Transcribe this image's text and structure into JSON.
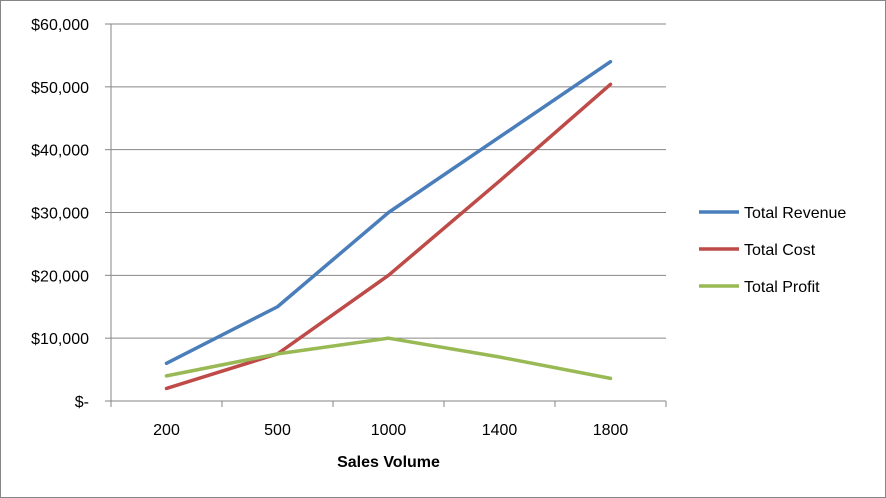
{
  "chart_data": {
    "type": "line",
    "categories": [
      "200",
      "500",
      "1000",
      "1400",
      "1800"
    ],
    "series": [
      {
        "name": "Total Revenue",
        "color": "#4A7EBB",
        "values": [
          6000,
          15000,
          30000,
          42000,
          54000
        ]
      },
      {
        "name": "Total Cost",
        "color": "#BE4B48",
        "values": [
          2000,
          7500,
          20000,
          35000,
          50400
        ]
      },
      {
        "name": "Total Profit",
        "color": "#98B954",
        "values": [
          4000,
          7500,
          10000,
          7000,
          3600
        ]
      }
    ],
    "xlabel": "Sales Volume",
    "ylabel": "",
    "ylim": [
      0,
      60000
    ],
    "y_ticks": [
      {
        "value": 0,
        "label": "$-"
      },
      {
        "value": 10000,
        "label": "$10,000"
      },
      {
        "value": 20000,
        "label": "$20,000"
      },
      {
        "value": 30000,
        "label": "$30,000"
      },
      {
        "value": 40000,
        "label": "$40,000"
      },
      {
        "value": 50000,
        "label": "$50,000"
      },
      {
        "value": 60000,
        "label": "$60,000"
      }
    ],
    "grid": true,
    "legend_position": "right"
  }
}
